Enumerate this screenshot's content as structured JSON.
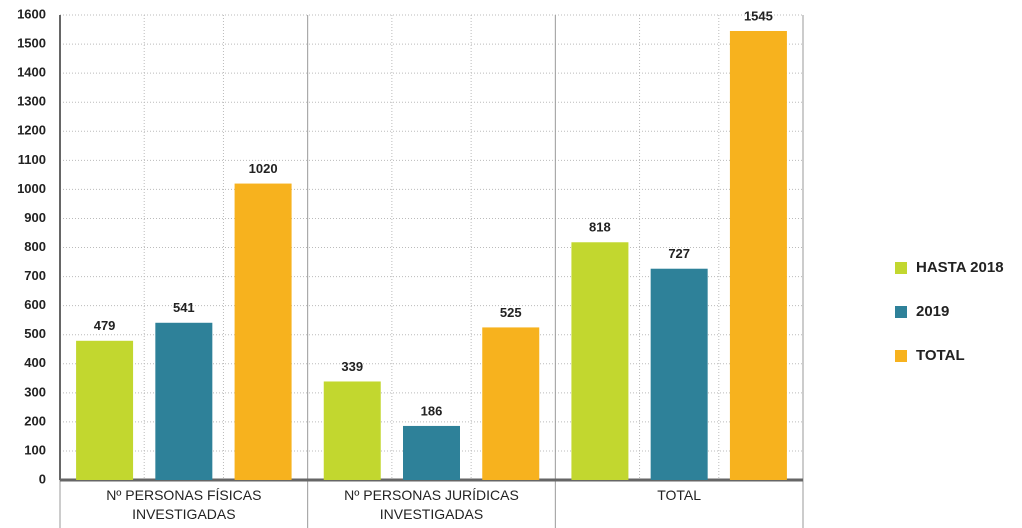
{
  "chart_data": {
    "type": "bar",
    "categories": [
      "Nº PERSONAS FÍSICAS INVESTIGADAS",
      "Nº PERSONAS JURÍDICAS INVESTIGADAS",
      "TOTAL"
    ],
    "series": [
      {
        "name": "HASTA 2018",
        "color": "#c2d72f",
        "values": [
          479,
          339,
          818
        ]
      },
      {
        "name": "2019",
        "color": "#2e8199",
        "values": [
          541,
          186,
          727
        ]
      },
      {
        "name": "TOTAL",
        "color": "#f7b21e",
        "values": [
          1020,
          525,
          1545
        ]
      }
    ],
    "ylim": [
      0,
      1600
    ],
    "yticks": [
      0,
      100,
      200,
      300,
      400,
      500,
      600,
      700,
      800,
      900,
      1000,
      1100,
      1200,
      1300,
      1400,
      1500,
      1600
    ],
    "grid": true,
    "legend": "right"
  }
}
